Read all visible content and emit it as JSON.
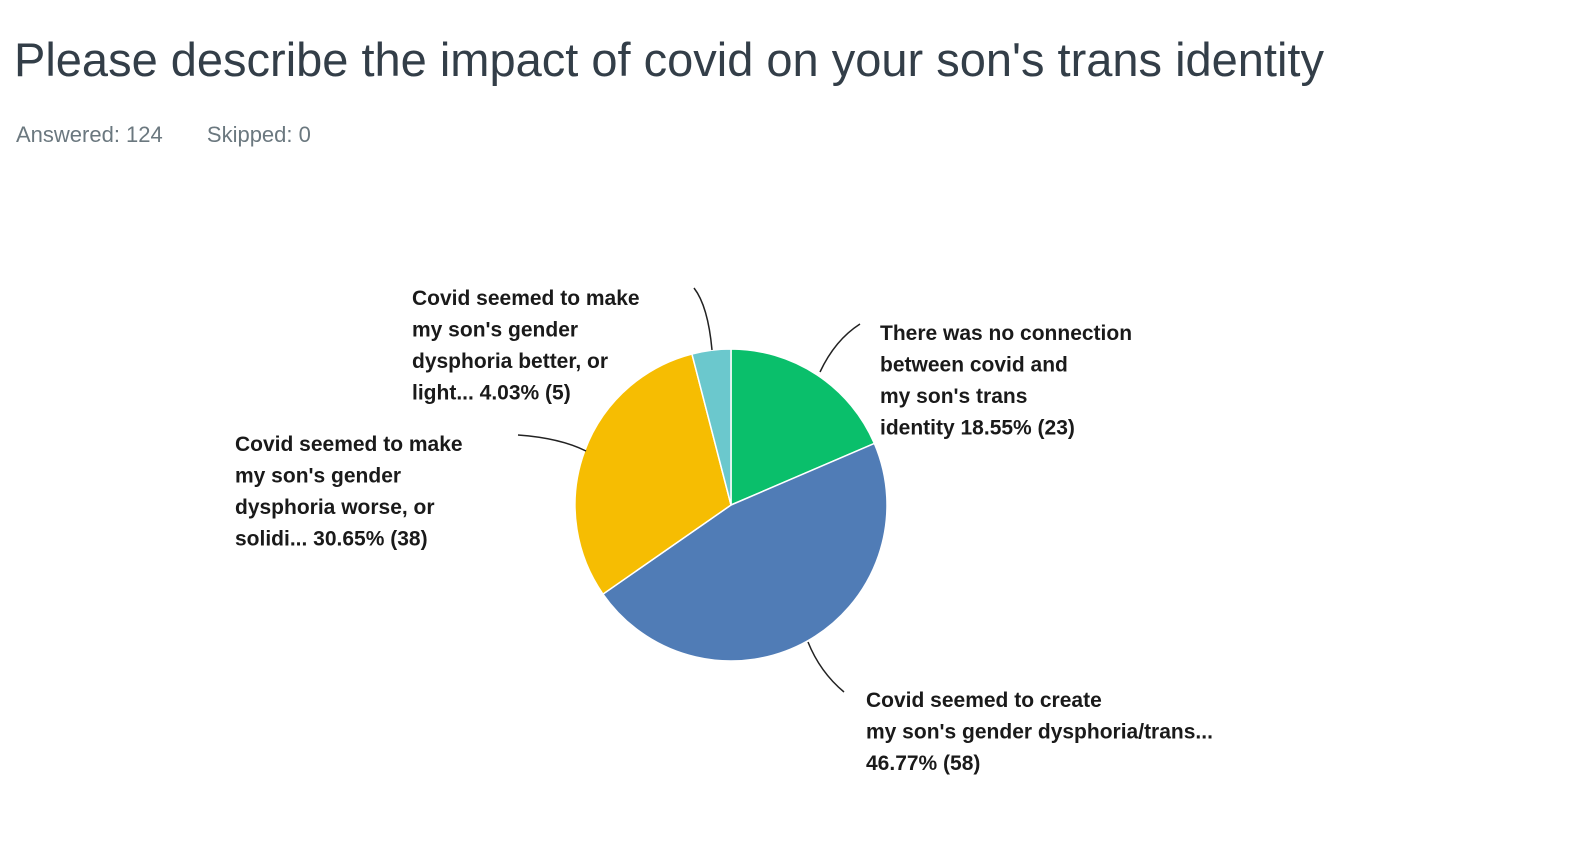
{
  "question": {
    "title": "Please describe the impact of covid on your son's trans identity",
    "answered_label": "Answered: 124",
    "skipped_label": "Skipped: 0"
  },
  "chart_data": {
    "type": "pie",
    "title": "",
    "start_angle_deg": 0,
    "direction": "clockwise",
    "slices": [
      {
        "name": "There was no connection between covid and my son's trans identity",
        "percent": 18.55,
        "count": 23,
        "color": "#0abf6b",
        "label_lines": [
          "There was no connection",
          "between covid and",
          "my son's trans",
          "identity 18.55% (23)"
        ]
      },
      {
        "name": "Covid seemed to create my son's gender dysphoria/trans...",
        "percent": 46.77,
        "count": 58,
        "color": "#507cb6",
        "label_lines": [
          "Covid seemed to create",
          "my son's gender dysphoria/trans...",
          "46.77% (58)"
        ]
      },
      {
        "name": "Covid seemed to make my son's gender dysphoria worse, or solidi...",
        "percent": 30.65,
        "count": 38,
        "color": "#f6bd02",
        "label_lines": [
          "Covid seemed to make",
          "my son's gender",
          "dysphoria worse, or",
          "solidi... 30.65% (38)"
        ]
      },
      {
        "name": "Covid seemed to make my son's gender dysphoria better, or light...",
        "percent": 4.03,
        "count": 5,
        "color": "#6bc8cd",
        "label_lines": [
          "Covid seemed to make",
          "my son's gender",
          "dysphoria better, or",
          "light... 4.03% (5)"
        ]
      }
    ]
  }
}
